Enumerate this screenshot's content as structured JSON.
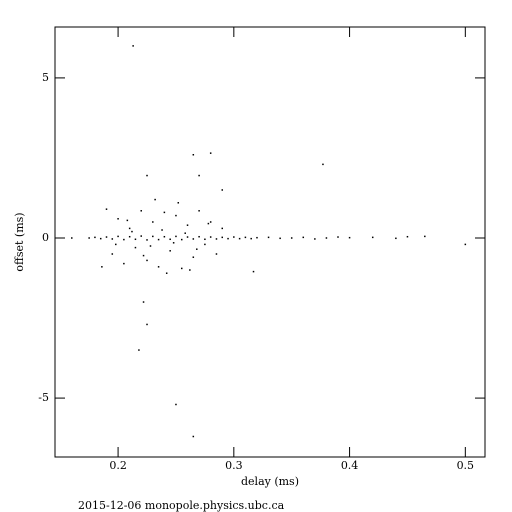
{
  "chart_data": {
    "type": "scatter",
    "x_label": "delay (ms)",
    "y_label": "offset (ms)",
    "footer": "2015-12-06  monopole.physics.ubc.ca",
    "xlim": [
      0.1455,
      0.517
    ],
    "ylim": [
      -6.84,
      6.59
    ],
    "xticks": [
      0.2,
      0.3,
      0.4,
      0.5
    ],
    "yticks": [
      -5,
      0,
      5
    ],
    "color": "#000000",
    "x": [
      0.16,
      0.175,
      0.18,
      0.185,
      0.19,
      0.195,
      0.2,
      0.205,
      0.21,
      0.215,
      0.22,
      0.225,
      0.23,
      0.235,
      0.24,
      0.245,
      0.25,
      0.255,
      0.26,
      0.265,
      0.27,
      0.275,
      0.28,
      0.285,
      0.29,
      0.295,
      0.3,
      0.305,
      0.31,
      0.315,
      0.32,
      0.33,
      0.34,
      0.35,
      0.36,
      0.37,
      0.38,
      0.39,
      0.4,
      0.42,
      0.44,
      0.45,
      0.465,
      0.19,
      0.195,
      0.2,
      0.205,
      0.21,
      0.215,
      0.22,
      0.225,
      0.23,
      0.235,
      0.24,
      0.245,
      0.25,
      0.255,
      0.26,
      0.265,
      0.27,
      0.275,
      0.28,
      0.285,
      0.29,
      0.212,
      0.228,
      0.238,
      0.248,
      0.258,
      0.268,
      0.232,
      0.252,
      0.242,
      0.262,
      0.222,
      0.208,
      0.278,
      0.198,
      0.186,
      0.213,
      0.265,
      0.28,
      0.377,
      0.222,
      0.225,
      0.218,
      0.25,
      0.265,
      0.5,
      0.317,
      0.225,
      0.27,
      0.29
    ],
    "y": [
      0,
      0,
      0.02,
      -0.02,
      0.03,
      -0.03,
      0.05,
      -0.05,
      0.04,
      -0.04,
      0.06,
      -0.06,
      0.05,
      -0.05,
      0.04,
      -0.04,
      0.05,
      -0.05,
      0.03,
      -0.03,
      0.04,
      -0.04,
      0.03,
      -0.03,
      0.02,
      -0.02,
      0.03,
      -0.02,
      0.02,
      -0.02,
      0.01,
      0.02,
      -0.01,
      0,
      0.02,
      -0.03,
      0,
      0.03,
      0.01,
      0.02,
      -0.01,
      0.04,
      0.05,
      0.9,
      -0.5,
      0.6,
      -0.8,
      0.3,
      -0.3,
      0.85,
      -0.7,
      0.5,
      -0.9,
      0.8,
      -0.4,
      0.7,
      -0.95,
      0.4,
      -0.6,
      0.85,
      -0.2,
      0.5,
      -0.5,
      0.3,
      0.2,
      -0.25,
      0.25,
      -0.15,
      0.15,
      -0.35,
      1.2,
      1.1,
      -1.1,
      -1.0,
      -0.55,
      0.55,
      0.45,
      -0.2,
      -0.9,
      6.0,
      2.6,
      2.65,
      2.3,
      -2.0,
      -2.7,
      -3.5,
      -5.2,
      -6.2,
      -0.2,
      -1.05,
      1.95,
      1.95,
      1.5
    ]
  }
}
